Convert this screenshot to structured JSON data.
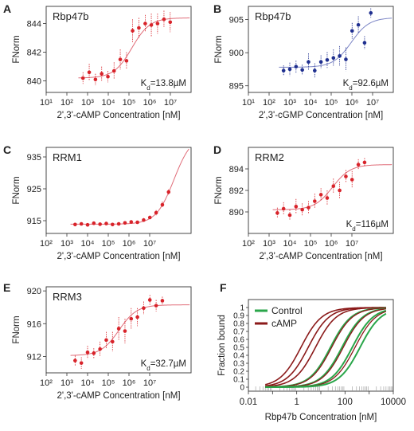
{
  "colors": {
    "red": "#d8232a",
    "blue": "#1f2f8f",
    "fitRed": "#e06c78",
    "fitBlue": "#7d86c6",
    "green": "#2aa64a",
    "darkred": "#8b1a1a"
  },
  "chart_data": [
    {
      "panel": "A",
      "title": "Rbp47b",
      "type": "scatter",
      "x_scale": "log",
      "xlabel": "2',3'-cAMP Concentration [nM]",
      "ylabel": "FNorm",
      "kd_label": "13.8µM",
      "xlim": [
        1,
        10000000.0
      ],
      "ylim": [
        839.2,
        845.2
      ],
      "xticks": [
        "10¹",
        "10²",
        "10³",
        "10⁴",
        "10⁵",
        "10⁶",
        "10⁷"
      ],
      "yticks": [
        840,
        842,
        844
      ],
      "fit": {
        "bottom": 840.2,
        "top": 844.4,
        "ec50": 13800.0,
        "hill": 1.0
      },
      "x": [
        60,
        120,
        240,
        480,
        960,
        1900,
        3800,
        7600,
        15000,
        30000,
        61000,
        120000,
        240000,
        490000,
        980000
      ],
      "y": [
        840.2,
        840.6,
        840.1,
        840.5,
        840.3,
        840.7,
        841.5,
        841.4,
        843.5,
        843.7,
        844.0,
        843.9,
        844.0,
        844.3,
        844.1
      ],
      "err": [
        0.4,
        0.6,
        0.4,
        0.5,
        0.4,
        0.6,
        0.7,
        0.6,
        0.8,
        0.7,
        0.6,
        0.8,
        0.7,
        0.6,
        0.7
      ],
      "color": "red"
    },
    {
      "panel": "B",
      "title": "Rbp47b",
      "type": "scatter",
      "x_scale": "log",
      "xlabel": "2',3'-cGMP Concentration [nM]",
      "ylabel": "FNorm",
      "kd_label": "92.6µM",
      "xlim": [
        1,
        10000000.0
      ],
      "ylim": [
        894,
        907
      ],
      "xticks": [
        "10¹",
        "10²",
        "10³",
        "10⁴",
        "10⁵",
        "10⁶",
        "10⁷"
      ],
      "yticks": [
        895,
        900,
        905
      ],
      "fit": {
        "bottom": 897.8,
        "top": 905.3,
        "ec50": 92600.0,
        "hill": 1.0
      },
      "x": [
        50,
        100,
        200,
        400,
        800,
        1600,
        3200,
        6400,
        12800,
        25600,
        51200,
        102400,
        204800,
        409600,
        819200
      ],
      "y": [
        897.3,
        897.5,
        897.9,
        897.4,
        898.6,
        897.3,
        898.6,
        898.9,
        899.2,
        899.5,
        899.0,
        903.3,
        904.2,
        901.5,
        906.0
      ],
      "err": [
        0.8,
        1.0,
        0.9,
        0.8,
        1.3,
        1.1,
        1.0,
        1.2,
        1.3,
        1.5,
        1.8,
        1.2,
        1.3,
        1.0,
        0.7
      ],
      "color": "blue"
    },
    {
      "panel": "C",
      "title": "RRM1",
      "type": "scatter",
      "x_scale": "log",
      "xlabel": "2',3'-cAMP Concentration [nM]",
      "ylabel": "FNorm",
      "kd_label": "",
      "xlim": [
        10,
        100000000.0
      ],
      "ylim": [
        911,
        938
      ],
      "xticks": [
        "10²",
        "10³",
        "10⁴",
        "10⁵",
        "10⁶",
        "10⁷"
      ],
      "yticks": [
        915,
        925,
        935
      ],
      "fit": {
        "bottom": 913.9,
        "top": 942.0,
        "ec50": 15000000.0,
        "hill": 1.0
      },
      "x": [
        250,
        500,
        1000,
        2000,
        4000,
        8000,
        16000,
        32000,
        64000,
        128000,
        256000,
        512000,
        1020000,
        2050000,
        4100000,
        8200000
      ],
      "y": [
        913.8,
        914.0,
        913.7,
        914.2,
        913.9,
        914.1,
        913.8,
        914.0,
        914.3,
        914.6,
        914.5,
        915.2,
        916.0,
        917.5,
        920.0,
        924.0
      ],
      "err": [
        0.3,
        0.3,
        0.4,
        0.3,
        0.3,
        0.4,
        0.3,
        0.3,
        0.4,
        0.4,
        0.5,
        0.6,
        0.6,
        0.8,
        1.0,
        0.8
      ],
      "color": "red"
    },
    {
      "panel": "D",
      "title": "RRM2",
      "type": "scatter",
      "x_scale": "log",
      "xlabel": "2',3'-cAMP Concentration [nM]",
      "ylabel": "FNorm",
      "kd_label": "116µM",
      "xlim": [
        10,
        100000000.0
      ],
      "ylim": [
        888,
        896
      ],
      "xticks": [
        "10²",
        "10³",
        "10⁴",
        "10⁵",
        "10⁶",
        "10⁷"
      ],
      "yticks": [
        890,
        892,
        894
      ],
      "fit": {
        "bottom": 890.2,
        "top": 894.4,
        "ec50": 116000.0,
        "hill": 1.0
      },
      "x": [
        250,
        500,
        1000,
        2000,
        4000,
        8000,
        16000,
        32000,
        64000,
        128000,
        256000,
        512000,
        1020000,
        2050000,
        4100000
      ],
      "y": [
        889.9,
        890.3,
        889.7,
        890.5,
        890.2,
        890.4,
        891.0,
        891.6,
        891.3,
        892.4,
        892.0,
        893.3,
        893.0,
        894.4,
        894.6
      ],
      "err": [
        0.5,
        0.6,
        0.5,
        0.7,
        0.6,
        0.6,
        0.7,
        0.6,
        0.7,
        0.7,
        0.8,
        0.6,
        0.8,
        0.5,
        0.4
      ],
      "color": "red"
    },
    {
      "panel": "E",
      "title": "RRM3",
      "type": "scatter",
      "x_scale": "log",
      "xlabel": "2',3'-cAMP Concentration [nM]",
      "ylabel": "FNorm",
      "kd_label": "32.7µM",
      "xlim": [
        10,
        100000000.0
      ],
      "ylim": [
        910,
        920.5
      ],
      "xticks": [
        "10²",
        "10³",
        "10⁴",
        "10⁵",
        "10⁶",
        "10⁷"
      ],
      "yticks": [
        912,
        916,
        920
      ],
      "fit": {
        "bottom": 912.1,
        "top": 918.3,
        "ec50": 32700.0,
        "hill": 1.0
      },
      "x": [
        250,
        500,
        1000,
        2000,
        4000,
        8000,
        16000,
        32000,
        64000,
        128000,
        256000,
        512000,
        1020000,
        2050000,
        4100000
      ],
      "y": [
        911.5,
        911.2,
        912.5,
        912.4,
        912.9,
        914.0,
        913.8,
        915.4,
        915.1,
        916.6,
        916.8,
        917.9,
        918.9,
        918.2,
        918.8
      ],
      "err": [
        0.6,
        0.7,
        0.8,
        0.6,
        0.9,
        1.0,
        1.2,
        1.4,
        1.5,
        1.3,
        1.1,
        0.8,
        0.6,
        0.7,
        0.5
      ],
      "color": "red"
    },
    {
      "panel": "F",
      "type": "line",
      "x_scale": "log",
      "xlabel": "Rbp47b Concentration [nM]",
      "ylabel": "Fraction bound",
      "xlim": [
        0.01,
        10000
      ],
      "ylim": [
        -0.05,
        1.1
      ],
      "xticks": [
        "0.01",
        "1",
        "100",
        "10000"
      ],
      "yticks": [
        "0",
        "0.1",
        "0.2",
        "0.3",
        "0.4",
        "0.5",
        "0.6",
        "0.7",
        "0.8",
        "0.9",
        "1"
      ],
      "legend": {
        "position": "top-left",
        "entries": [
          {
            "label": "Control",
            "color": "green"
          },
          {
            "label": "cAMP",
            "color": "darkred"
          }
        ]
      },
      "series": [
        {
          "group": "cAMP",
          "kd": 1.5,
          "color": "darkred",
          "width": 1.6
        },
        {
          "group": "cAMP",
          "kd": 3.0,
          "color": "darkred",
          "width": 1.6
        },
        {
          "group": "cAMP",
          "kd": 6.0,
          "color": "darkred",
          "width": 1.6
        },
        {
          "group": "Control",
          "kd": 25,
          "color": "green",
          "width": 2.0
        },
        {
          "group": "cAMP",
          "kd": 28,
          "color": "darkred",
          "width": 1.3
        },
        {
          "group": "Control",
          "kd": 75,
          "color": "green",
          "width": 2.0
        },
        {
          "group": "cAMP",
          "kd": 85,
          "color": "darkred",
          "width": 1.3
        },
        {
          "group": "Control",
          "kd": 200,
          "color": "green",
          "width": 2.0
        },
        {
          "group": "cAMP",
          "kd": 260,
          "color": "darkred",
          "width": 1.3
        },
        {
          "group": "Control",
          "kd": 420,
          "color": "green",
          "width": 2.0
        }
      ]
    }
  ]
}
